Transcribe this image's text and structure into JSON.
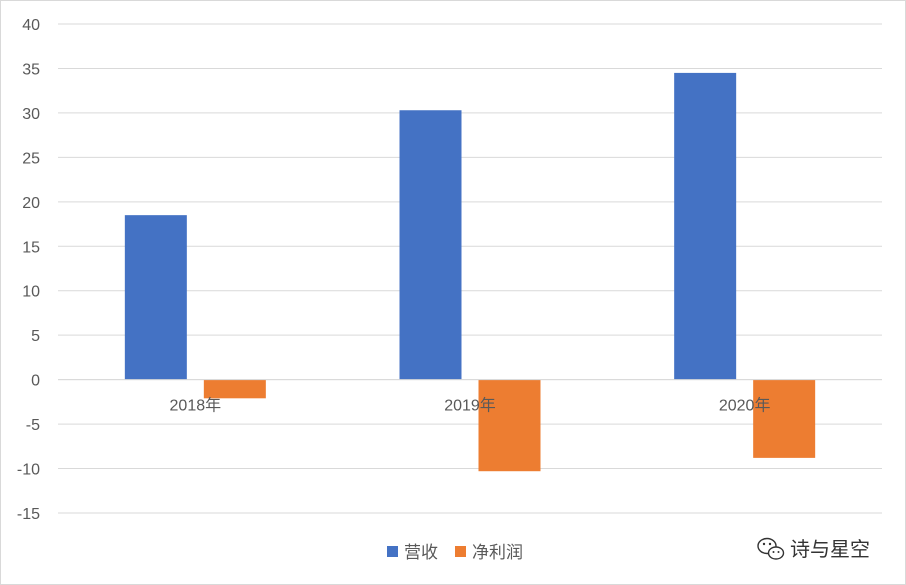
{
  "chart_data": {
    "type": "bar",
    "categories": [
      "2018年",
      "2019年",
      "2020年"
    ],
    "series": [
      {
        "name": "营收",
        "values": [
          18.5,
          30.3,
          34.5
        ],
        "color": "#4472C4"
      },
      {
        "name": "净利润",
        "values": [
          -2.1,
          -10.3,
          -8.8
        ],
        "color": "#ED7D31"
      }
    ],
    "ylim": [
      -15,
      40
    ],
    "yticks": [
      40,
      35,
      30,
      25,
      20,
      15,
      10,
      5,
      0,
      -5,
      -10,
      -15
    ],
    "grid": true,
    "legend_position": "bottom"
  },
  "watermark": {
    "text": "诗与星空",
    "icon": "wechat-icon"
  }
}
